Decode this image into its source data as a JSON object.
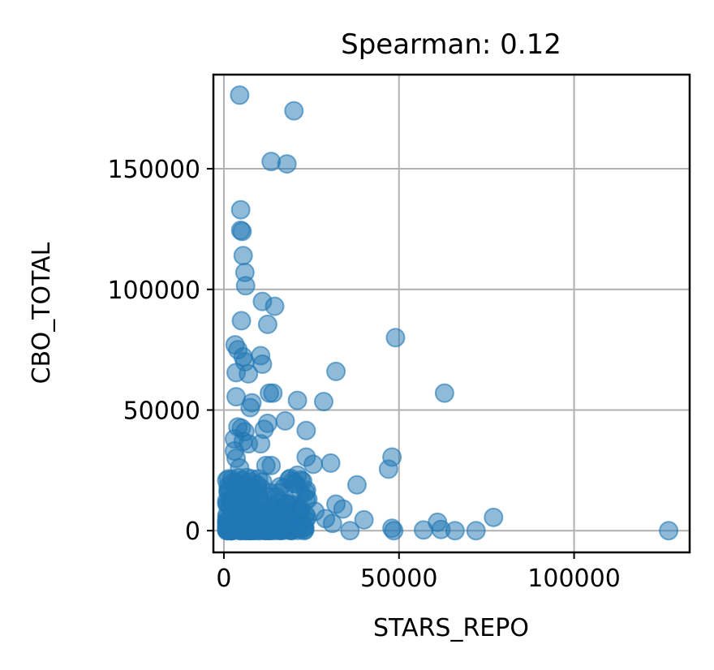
{
  "chart_data": {
    "type": "scatter",
    "title": "Spearman: 0.12",
    "xlabel": "STARS_REPO",
    "ylabel": "CBO_TOTAL",
    "xlim": [
      -3000,
      133000
    ],
    "ylim": [
      -9000,
      189000
    ],
    "xticks": [
      0,
      50000,
      100000
    ],
    "yticks": [
      0,
      50000,
      100000,
      150000
    ],
    "xtick_labels": [
      "0",
      "50000",
      "100000"
    ],
    "ytick_labels": [
      "0",
      "50000",
      "100000",
      "150000"
    ],
    "grid": true,
    "color": "#1f77b4",
    "series": [
      {
        "points": [
          [
            4500,
            180500
          ],
          [
            20000,
            174000
          ],
          [
            13500,
            153000
          ],
          [
            18000,
            152000
          ],
          [
            4800,
            133000
          ],
          [
            4800,
            124500
          ],
          [
            5200,
            124000
          ],
          [
            5500,
            114000
          ],
          [
            6000,
            107000
          ],
          [
            6200,
            101500
          ],
          [
            11000,
            95000
          ],
          [
            14500,
            93000
          ],
          [
            5000,
            87000
          ],
          [
            12500,
            85500
          ],
          [
            49000,
            80000
          ],
          [
            3200,
            77000
          ],
          [
            4000,
            75000
          ],
          [
            5500,
            72000
          ],
          [
            10500,
            72500
          ],
          [
            6000,
            70000
          ],
          [
            11000,
            69000
          ],
          [
            32000,
            66000
          ],
          [
            3500,
            65500
          ],
          [
            7000,
            65000
          ],
          [
            63000,
            57000
          ],
          [
            13000,
            57000
          ],
          [
            14000,
            57000
          ],
          [
            3500,
            55500
          ],
          [
            8000,
            53000
          ],
          [
            21000,
            54000
          ],
          [
            28500,
            53500
          ],
          [
            7500,
            51000
          ],
          [
            17500,
            45500
          ],
          [
            12500,
            44500
          ],
          [
            11500,
            42000
          ],
          [
            23500,
            41500
          ],
          [
            4000,
            43000
          ],
          [
            5000,
            42500
          ],
          [
            6000,
            41000
          ],
          [
            3000,
            38000
          ],
          [
            5500,
            37000
          ],
          [
            7000,
            36000
          ],
          [
            10500,
            36000
          ],
          [
            48000,
            30500
          ],
          [
            47000,
            25500
          ],
          [
            23500,
            30500
          ],
          [
            30500,
            28000
          ],
          [
            25500,
            27500
          ],
          [
            38000,
            19000
          ],
          [
            21000,
            23000
          ],
          [
            22000,
            21000
          ],
          [
            20000,
            19500
          ],
          [
            12000,
            27000
          ],
          [
            13500,
            27000
          ],
          [
            15000,
            14000
          ],
          [
            24000,
            13000
          ],
          [
            32000,
            11000
          ],
          [
            34000,
            9000
          ],
          [
            40000,
            4500
          ],
          [
            48000,
            1000
          ],
          [
            48500,
            0
          ],
          [
            57000,
            300
          ],
          [
            61000,
            3500
          ],
          [
            62000,
            500
          ],
          [
            66000,
            0
          ],
          [
            72000,
            0
          ],
          [
            77000,
            5500
          ],
          [
            127000,
            0
          ],
          [
            36000,
            0
          ],
          [
            31000,
            3000
          ],
          [
            29000,
            5000
          ],
          [
            26000,
            8000
          ],
          [
            22000,
            9000
          ],
          [
            18000,
            11000
          ],
          [
            16000,
            7000
          ],
          [
            10000,
            14000
          ],
          [
            8000,
            18000
          ],
          [
            6500,
            22000
          ],
          [
            4500,
            26000
          ],
          [
            3500,
            30000
          ],
          [
            3000,
            33000
          ],
          [
            2500,
            20000
          ],
          [
            2000,
            10000
          ]
        ]
      }
    ]
  }
}
